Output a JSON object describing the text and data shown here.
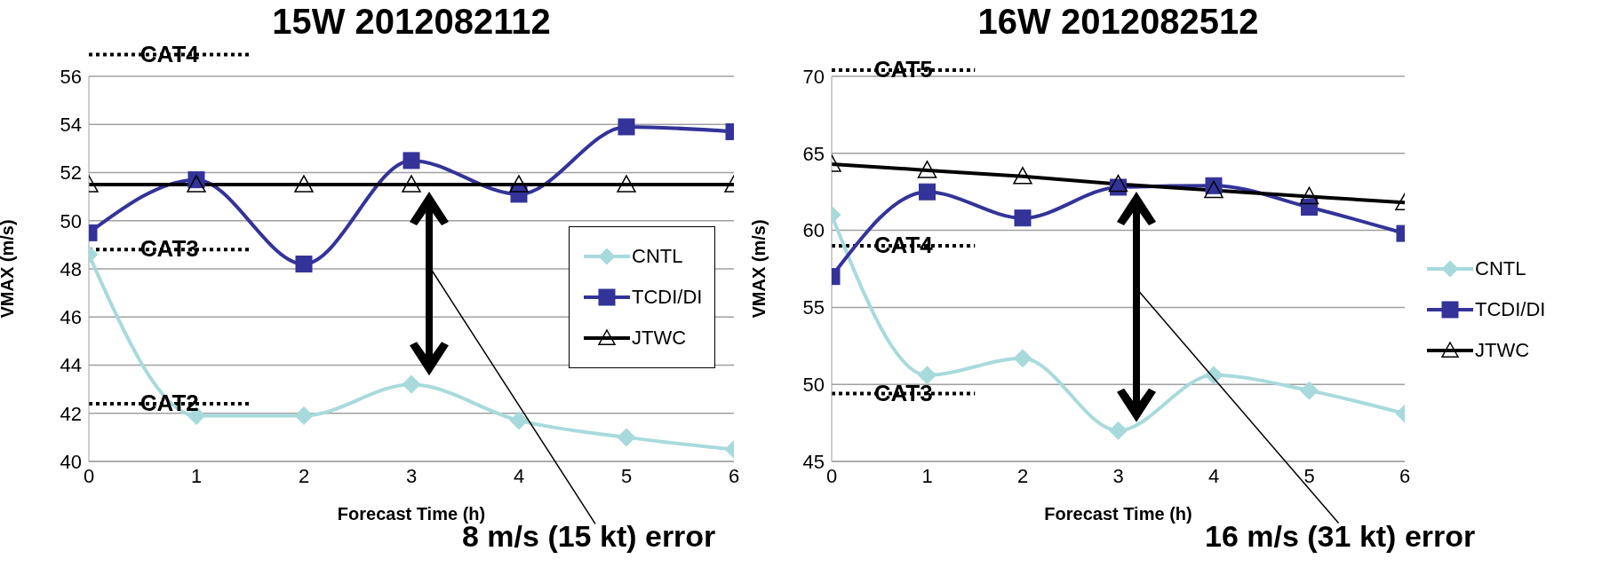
{
  "chart_data": [
    {
      "type": "line",
      "title": "15W 2012082112",
      "xlabel": "Forecast Time (h)",
      "ylabel": "VMAX (m/s)",
      "x": [
        0,
        1,
        2,
        3,
        4,
        5,
        6
      ],
      "xlim": [
        0,
        6
      ],
      "xticks": [
        0,
        1,
        2,
        3,
        4,
        5,
        6
      ],
      "ylim": [
        40,
        56
      ],
      "yticks": [
        40,
        42,
        44,
        46,
        48,
        50,
        52,
        54,
        56
      ],
      "grid": "y",
      "legend": "right",
      "series": [
        {
          "name": "CNTL",
          "color": "#a8dadc",
          "marker": "diamond",
          "values": [
            48.6,
            41.9,
            41.9,
            43.2,
            41.7,
            41.0,
            40.5
          ]
        },
        {
          "name": "TCDI/DI",
          "color": "#333399",
          "marker": "square",
          "values": [
            49.5,
            51.7,
            48.2,
            52.5,
            51.1,
            53.9,
            53.7
          ]
        },
        {
          "name": "JTWC",
          "color": "#000000",
          "marker": "triangle",
          "values": [
            51.5,
            51.5,
            51.5,
            51.5,
            51.5,
            51.5,
            51.5
          ]
        }
      ],
      "ref_lines": [
        {
          "axis": "y",
          "value": 56.9,
          "label": "CAT4",
          "line_style": "dotted",
          "color": "#000000"
        },
        {
          "axis": "y",
          "value": 48.8,
          "label": "CAT3",
          "line_style": "dotted",
          "color": "#000000"
        },
        {
          "axis": "y",
          "value": 42.4,
          "label": "CAT2",
          "line_style": "dotted",
          "color": "#000000"
        }
      ],
      "annotations": [
        "8 m/s (15 kt) error"
      ]
    },
    {
      "type": "line",
      "title": "16W 2012082512",
      "xlabel": "Forecast Time (h)",
      "ylabel": "VMAX (m/s)",
      "x": [
        0,
        1,
        2,
        3,
        4,
        5,
        6
      ],
      "xlim": [
        0,
        6
      ],
      "xticks": [
        0,
        1,
        2,
        3,
        4,
        5,
        6
      ],
      "ylim": [
        45,
        70
      ],
      "yticks": [
        45,
        50,
        55,
        60,
        65,
        70
      ],
      "grid": "y",
      "legend": "right",
      "series": [
        {
          "name": "CNTL",
          "color": "#a8dadc",
          "marker": "diamond",
          "values": [
            61.0,
            50.6,
            51.7,
            47.0,
            50.6,
            49.6,
            48.1
          ]
        },
        {
          "name": "TCDI/DI",
          "color": "#333399",
          "marker": "square",
          "values": [
            57.0,
            62.5,
            60.8,
            62.8,
            62.9,
            61.5,
            59.8
          ]
        },
        {
          "name": "JTWC",
          "color": "#000000",
          "marker": "triangle",
          "values": [
            64.3,
            63.9,
            63.5,
            63.0,
            62.6,
            62.2,
            61.8
          ]
        }
      ],
      "ref_lines": [
        {
          "axis": "y",
          "value": 70.4,
          "label": "CAT5",
          "line_style": "dotted",
          "color": "#000000"
        },
        {
          "axis": "y",
          "value": 59.0,
          "label": "CAT4",
          "line_style": "dotted",
          "color": "#000000"
        },
        {
          "axis": "y",
          "value": 49.4,
          "label": "CAT3",
          "line_style": "dotted",
          "color": "#000000"
        }
      ],
      "annotations": [
        "16 m/s (31 kt) error"
      ]
    }
  ]
}
